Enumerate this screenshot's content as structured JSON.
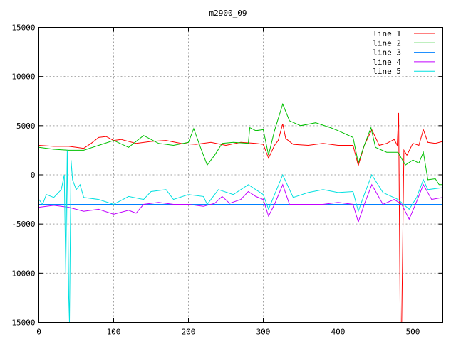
{
  "chart_data": {
    "type": "line",
    "title": "m2900_09",
    "xlabel": "",
    "ylabel": "",
    "xlim": [
      0,
      540
    ],
    "ylim": [
      -15000,
      15000
    ],
    "xticks": [
      0,
      100,
      200,
      300,
      400,
      500
    ],
    "yticks": [
      -15000,
      -10000,
      -5000,
      0,
      5000,
      10000,
      15000
    ],
    "grid": true,
    "legend_position": "top-right",
    "series": [
      {
        "name": "line 1",
        "color": "#ff0000",
        "x": [
          0,
          20,
          40,
          50,
          60,
          70,
          80,
          90,
          100,
          110,
          130,
          150,
          170,
          190,
          210,
          230,
          250,
          270,
          290,
          300,
          307,
          315,
          320,
          326,
          330,
          340,
          360,
          380,
          400,
          420,
          427,
          435,
          445,
          455,
          465,
          475,
          479,
          481,
          483,
          485,
          488,
          492,
          500,
          508,
          514,
          520,
          530,
          540
        ],
        "y": [
          3000,
          2900,
          2900,
          2800,
          2700,
          3200,
          3800,
          3900,
          3500,
          3600,
          3200,
          3400,
          3500,
          3200,
          3100,
          3300,
          3000,
          3300,
          3200,
          3100,
          1700,
          3000,
          3500,
          5200,
          3700,
          3100,
          3000,
          3200,
          3000,
          3000,
          950,
          3000,
          4600,
          3000,
          3200,
          3600,
          3000,
          6300,
          -15000,
          -15000,
          2500,
          2000,
          3200,
          3000,
          4600,
          3300,
          3200,
          3400
        ]
      },
      {
        "name": "line 2",
        "color": "#00c000",
        "x": [
          0,
          20,
          40,
          60,
          80,
          100,
          120,
          140,
          160,
          180,
          200,
          207,
          215,
          225,
          235,
          245,
          260,
          280,
          282,
          290,
          300,
          307,
          315,
          326,
          335,
          350,
          370,
          390,
          400,
          420,
          427,
          435,
          444,
          450,
          465,
          480,
          490,
          500,
          508,
          514,
          520,
          530,
          535,
          540
        ],
        "y": [
          2800,
          2600,
          2500,
          2500,
          3000,
          3500,
          2800,
          4000,
          3200,
          3000,
          3300,
          4700,
          3000,
          1000,
          2000,
          3200,
          3300,
          3200,
          4800,
          4500,
          4600,
          2000,
          4500,
          7200,
          5500,
          5000,
          5300,
          4800,
          4500,
          3800,
          1200,
          3000,
          4800,
          2800,
          2300,
          2300,
          1000,
          1500,
          1200,
          2300,
          -500,
          -400,
          -1000,
          -1000
        ]
      },
      {
        "name": "line 3",
        "color": "#0080ff",
        "x": [
          0,
          540
        ],
        "y": [
          -3000,
          -3000
        ]
      },
      {
        "name": "line 4",
        "color": "#c000ff",
        "x": [
          0,
          20,
          40,
          60,
          80,
          100,
          120,
          130,
          140,
          160,
          180,
          200,
          220,
          235,
          245,
          255,
          270,
          280,
          290,
          300,
          307,
          315,
          326,
          335,
          360,
          380,
          400,
          420,
          427,
          435,
          445,
          460,
          475,
          485,
          495,
          505,
          514,
          525,
          540
        ],
        "y": [
          -3300,
          -3100,
          -3300,
          -3700,
          -3500,
          -4000,
          -3600,
          -3900,
          -3000,
          -2800,
          -3000,
          -3000,
          -3200,
          -2900,
          -2200,
          -2900,
          -2500,
          -1700,
          -2200,
          -2500,
          -4200,
          -3000,
          -1000,
          -3000,
          -3000,
          -3000,
          -2800,
          -3000,
          -4800,
          -3000,
          -1000,
          -3000,
          -2500,
          -3000,
          -4500,
          -2700,
          -1000,
          -2500,
          -2300
        ]
      },
      {
        "name": "line 5",
        "color": "#00e0e0",
        "x": [
          0,
          5,
          10,
          20,
          30,
          34,
          36,
          38,
          40,
          41,
          43,
          45,
          50,
          55,
          60,
          80,
          100,
          120,
          140,
          150,
          170,
          180,
          200,
          220,
          225,
          240,
          260,
          280,
          300,
          307,
          326,
          340,
          360,
          380,
          400,
          420,
          427,
          435,
          445,
          460,
          480,
          495,
          505,
          514,
          520,
          540
        ],
        "y": [
          -2500,
          -3000,
          -2000,
          -2300,
          -1500,
          0,
          -10000,
          2500,
          -12500,
          -15000,
          1500,
          -500,
          -1500,
          -1000,
          -2300,
          -2500,
          -3000,
          -2200,
          -2500,
          -1700,
          -1500,
          -2500,
          -2000,
          -2200,
          -3000,
          -1500,
          -2000,
          -1000,
          -2000,
          -3500,
          0,
          -2300,
          -1800,
          -1500,
          -1800,
          -1700,
          -3700,
          -2000,
          0,
          -1800,
          -2500,
          -3500,
          -2300,
          -500,
          -1500,
          -1300
        ]
      }
    ]
  }
}
